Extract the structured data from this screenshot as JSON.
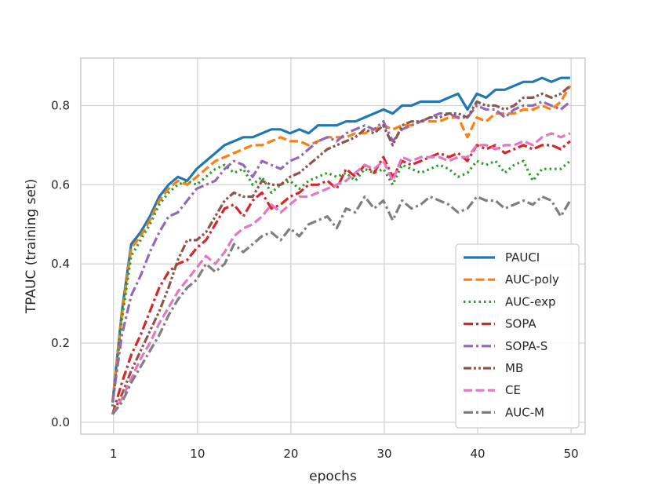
{
  "chart_data": {
    "type": "line",
    "title": "",
    "xlabel": "epochs",
    "ylabel": "TPAUC (training set)",
    "xlim": [
      -2.5,
      51.5
    ],
    "ylim": [
      -0.03,
      0.92
    ],
    "xticks": [
      {
        "value": 1,
        "label": "1"
      },
      {
        "value": 10,
        "label": "10"
      },
      {
        "value": 20,
        "label": "20"
      },
      {
        "value": 30,
        "label": "30"
      },
      {
        "value": 40,
        "label": "40"
      },
      {
        "value": 50,
        "label": "50"
      }
    ],
    "yticks": [
      {
        "value": 0.0,
        "label": "0.0"
      },
      {
        "value": 0.2,
        "label": "0.2"
      },
      {
        "value": 0.4,
        "label": "0.4"
      },
      {
        "value": 0.6,
        "label": "0.6"
      },
      {
        "value": 0.8,
        "label": "0.8"
      }
    ],
    "grid": true,
    "legend_position": "lower-right",
    "x": [
      0,
      1,
      2,
      3,
      4,
      5,
      6,
      7,
      8,
      9,
      10,
      11,
      12,
      13,
      14,
      15,
      16,
      17,
      18,
      19,
      20,
      21,
      22,
      23,
      24,
      25,
      26,
      27,
      28,
      29,
      30,
      31,
      32,
      33,
      34,
      35,
      36,
      37,
      38,
      39,
      40,
      41,
      42,
      43,
      44,
      45,
      46,
      47,
      48,
      49
    ],
    "series": [
      {
        "name": "PAUCI",
        "color": "#1f77b4",
        "dash": "solid",
        "values": [
          0.05,
          0.28,
          0.45,
          0.48,
          0.52,
          0.57,
          0.6,
          0.62,
          0.61,
          0.64,
          0.66,
          0.68,
          0.7,
          0.71,
          0.72,
          0.72,
          0.73,
          0.74,
          0.74,
          0.73,
          0.74,
          0.73,
          0.75,
          0.75,
          0.75,
          0.76,
          0.76,
          0.77,
          0.78,
          0.79,
          0.78,
          0.8,
          0.8,
          0.81,
          0.81,
          0.81,
          0.82,
          0.83,
          0.79,
          0.83,
          0.82,
          0.84,
          0.84,
          0.85,
          0.86,
          0.86,
          0.87,
          0.86,
          0.87,
          0.87
        ]
      },
      {
        "name": "AUC-poly",
        "color": "#ff7f0e",
        "dash": "dashed",
        "values": [
          0.05,
          0.27,
          0.44,
          0.47,
          0.51,
          0.56,
          0.59,
          0.61,
          0.6,
          0.62,
          0.64,
          0.66,
          0.67,
          0.68,
          0.69,
          0.7,
          0.7,
          0.71,
          0.72,
          0.71,
          0.71,
          0.7,
          0.71,
          0.72,
          0.72,
          0.72,
          0.73,
          0.73,
          0.74,
          0.75,
          0.74,
          0.75,
          0.75,
          0.76,
          0.76,
          0.76,
          0.77,
          0.77,
          0.72,
          0.77,
          0.76,
          0.78,
          0.78,
          0.78,
          0.79,
          0.79,
          0.8,
          0.79,
          0.81,
          0.85
        ]
      },
      {
        "name": "AUC-exp",
        "color": "#2ca02c",
        "dash": "dotted",
        "values": [
          0.04,
          0.26,
          0.42,
          0.46,
          0.5,
          0.55,
          0.58,
          0.6,
          0.61,
          0.6,
          0.62,
          0.64,
          0.65,
          0.63,
          0.64,
          0.6,
          0.62,
          0.58,
          0.6,
          0.61,
          0.59,
          0.61,
          0.62,
          0.63,
          0.62,
          0.63,
          0.61,
          0.64,
          0.63,
          0.64,
          0.6,
          0.65,
          0.64,
          0.63,
          0.64,
          0.65,
          0.64,
          0.62,
          0.63,
          0.66,
          0.65,
          0.66,
          0.63,
          0.65,
          0.66,
          0.61,
          0.64,
          0.64,
          0.64,
          0.66
        ]
      },
      {
        "name": "SOPA",
        "color": "#d62728",
        "dash": "dash-dot",
        "values": [
          0.02,
          0.1,
          0.17,
          0.22,
          0.28,
          0.34,
          0.38,
          0.4,
          0.41,
          0.44,
          0.46,
          0.5,
          0.54,
          0.55,
          0.52,
          0.56,
          0.58,
          0.54,
          0.55,
          0.57,
          0.58,
          0.6,
          0.6,
          0.61,
          0.59,
          0.64,
          0.62,
          0.65,
          0.63,
          0.67,
          0.62,
          0.66,
          0.65,
          0.66,
          0.67,
          0.68,
          0.67,
          0.68,
          0.66,
          0.7,
          0.69,
          0.7,
          0.68,
          0.69,
          0.7,
          0.69,
          0.7,
          0.7,
          0.69,
          0.71
        ]
      },
      {
        "name": "SOPA-S",
        "color": "#9467bd",
        "dash": "dash-dot",
        "values": [
          0.05,
          0.22,
          0.32,
          0.37,
          0.43,
          0.48,
          0.52,
          0.53,
          0.56,
          0.59,
          0.6,
          0.61,
          0.64,
          0.66,
          0.65,
          0.62,
          0.66,
          0.65,
          0.64,
          0.66,
          0.67,
          0.69,
          0.71,
          0.72,
          0.71,
          0.73,
          0.74,
          0.75,
          0.74,
          0.76,
          0.71,
          0.74,
          0.75,
          0.76,
          0.77,
          0.78,
          0.78,
          0.77,
          0.77,
          0.8,
          0.79,
          0.79,
          0.77,
          0.79,
          0.8,
          0.8,
          0.81,
          0.8,
          0.79,
          0.81
        ]
      },
      {
        "name": "MB",
        "color": "#8c564b",
        "dash": "dash-dot-dot",
        "values": [
          0.02,
          0.07,
          0.13,
          0.18,
          0.23,
          0.28,
          0.34,
          0.41,
          0.46,
          0.46,
          0.48,
          0.52,
          0.56,
          0.58,
          0.57,
          0.57,
          0.61,
          0.6,
          0.6,
          0.62,
          0.63,
          0.65,
          0.67,
          0.69,
          0.7,
          0.71,
          0.72,
          0.74,
          0.73,
          0.75,
          0.7,
          0.75,
          0.76,
          0.76,
          0.77,
          0.77,
          0.78,
          0.78,
          0.77,
          0.81,
          0.8,
          0.8,
          0.79,
          0.8,
          0.82,
          0.82,
          0.83,
          0.82,
          0.83,
          0.85
        ]
      },
      {
        "name": "CE",
        "color": "#e377c2",
        "dash": "dashed",
        "values": [
          0.02,
          0.06,
          0.11,
          0.16,
          0.2,
          0.25,
          0.29,
          0.33,
          0.36,
          0.39,
          0.42,
          0.4,
          0.43,
          0.47,
          0.49,
          0.5,
          0.52,
          0.55,
          0.53,
          0.55,
          0.57,
          0.57,
          0.58,
          0.59,
          0.6,
          0.61,
          0.63,
          0.65,
          0.64,
          0.66,
          0.61,
          0.67,
          0.66,
          0.67,
          0.67,
          0.67,
          0.66,
          0.67,
          0.67,
          0.7,
          0.7,
          0.69,
          0.7,
          0.7,
          0.71,
          0.7,
          0.72,
          0.73,
          0.72,
          0.73
        ]
      },
      {
        "name": "AUC-M",
        "color": "#7f7f7f",
        "dash": "dash-dot",
        "values": [
          0.02,
          0.05,
          0.1,
          0.14,
          0.18,
          0.22,
          0.27,
          0.31,
          0.34,
          0.36,
          0.4,
          0.38,
          0.4,
          0.45,
          0.43,
          0.45,
          0.47,
          0.48,
          0.46,
          0.49,
          0.47,
          0.5,
          0.51,
          0.52,
          0.49,
          0.54,
          0.53,
          0.57,
          0.54,
          0.56,
          0.51,
          0.56,
          0.54,
          0.55,
          0.57,
          0.56,
          0.55,
          0.53,
          0.54,
          0.57,
          0.56,
          0.56,
          0.54,
          0.55,
          0.56,
          0.55,
          0.57,
          0.56,
          0.52,
          0.56
        ]
      }
    ]
  }
}
